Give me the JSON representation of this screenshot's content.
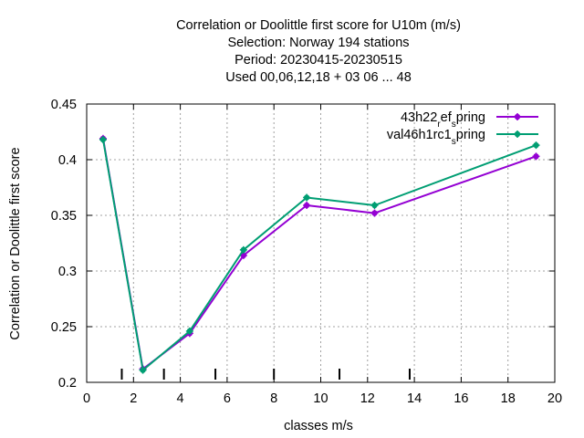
{
  "chart_data": {
    "type": "line",
    "title_lines": [
      "Correlation or Doolittle first score  for U10m (m/s)",
      "Selection: Norway    194 stations",
      "Period: 20230415-20230515",
      "Used  00,06,12,18  + 03 06 ... 48"
    ],
    "xlabel": "classes m/s",
    "ylabel": "Correlation or Doolittle first score",
    "xlim": [
      0,
      20
    ],
    "ylim": [
      0.2,
      0.45
    ],
    "x_ticks": [
      0,
      2,
      4,
      6,
      8,
      10,
      12,
      14,
      16,
      18,
      20
    ],
    "x_tick_labels": [
      "0",
      "2",
      "4",
      "6",
      "8",
      "10",
      "12",
      "14",
      "16",
      "18",
      "20"
    ],
    "y_ticks": [
      0.2,
      0.25,
      0.3,
      0.35,
      0.4,
      0.45
    ],
    "y_tick_labels": [
      "0.2",
      "0.25",
      "0.3",
      "0.35",
      "0.4",
      "0.45"
    ],
    "grid": true,
    "legend_position": "top-right",
    "class_boundaries": [
      1.5,
      3.3,
      5.5,
      8.0,
      10.8,
      13.8
    ],
    "series": [
      {
        "name_main": "43h22",
        "name_sub1": "r",
        "name_mid": "ef",
        "name_sub2": "s",
        "name_end": "pring",
        "color": "#9400d3",
        "x": [
          0.7,
          2.4,
          4.4,
          6.7,
          9.4,
          12.3,
          19.2
        ],
        "y": [
          0.419,
          0.212,
          0.244,
          0.314,
          0.359,
          0.352,
          0.403
        ]
      },
      {
        "name_main": "val46h1rc1",
        "name_sub1": "s",
        "name_end": "pring",
        "color": "#009e73",
        "x": [
          0.7,
          2.4,
          4.4,
          6.7,
          9.4,
          12.3,
          19.2
        ],
        "y": [
          0.418,
          0.211,
          0.246,
          0.319,
          0.366,
          0.359,
          0.413
        ]
      }
    ]
  }
}
